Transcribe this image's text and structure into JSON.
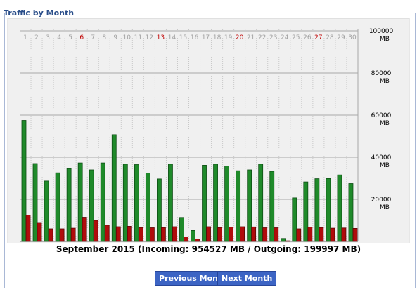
{
  "panel": {
    "title": "Traffic by Month"
  },
  "buttons": {
    "previous": "Previous Month",
    "next": "Next Month"
  },
  "caption": "September 2015 (Incoming: 954527 MB / Outgoing: 199997 MB)",
  "colors": {
    "incoming": "#1f8a2a",
    "outgoing": "#b00c0c",
    "weekend_label": "#c00000",
    "weekday_label": "#a0a0a0",
    "button": "#3c64c4",
    "title": "#2a4e8a"
  },
  "chart_data": {
    "type": "bar",
    "categories": [
      "1",
      "2",
      "3",
      "4",
      "5",
      "6",
      "7",
      "8",
      "9",
      "10",
      "11",
      "12",
      "13",
      "14",
      "15",
      "16",
      "17",
      "18",
      "19",
      "20",
      "21",
      "22",
      "23",
      "24",
      "25",
      "26",
      "27",
      "28",
      "29",
      "30"
    ],
    "weekend_days": [
      "6",
      "13",
      "20",
      "27"
    ],
    "series": [
      {
        "values": [
          57500,
          37000,
          28700,
          32600,
          34600,
          37300,
          34000,
          37300,
          50700,
          36700,
          36500,
          32500,
          29700,
          36700,
          11400,
          5200,
          36200,
          36700,
          35800,
          33600,
          34000,
          36700,
          33300,
          1400,
          20700,
          28300,
          29800,
          29900,
          31600,
          27500
        ]
      },
      {
        "values": [
          12500,
          9000,
          6000,
          6000,
          6300,
          11500,
          10000,
          7700,
          7000,
          7200,
          6600,
          6500,
          6600,
          7000,
          2200,
          1200,
          7000,
          6600,
          6800,
          7000,
          6900,
          6500,
          6500,
          300,
          6000,
          6800,
          6600,
          6300,
          6400,
          6200
        ]
      }
    ],
    "y_ticks": [
      "20000\nMB",
      "40000\nMB",
      "60000\nMB",
      "80000\nMB",
      "100000\nMB"
    ],
    "ylim": [
      0,
      100000
    ],
    "grid": true
  }
}
